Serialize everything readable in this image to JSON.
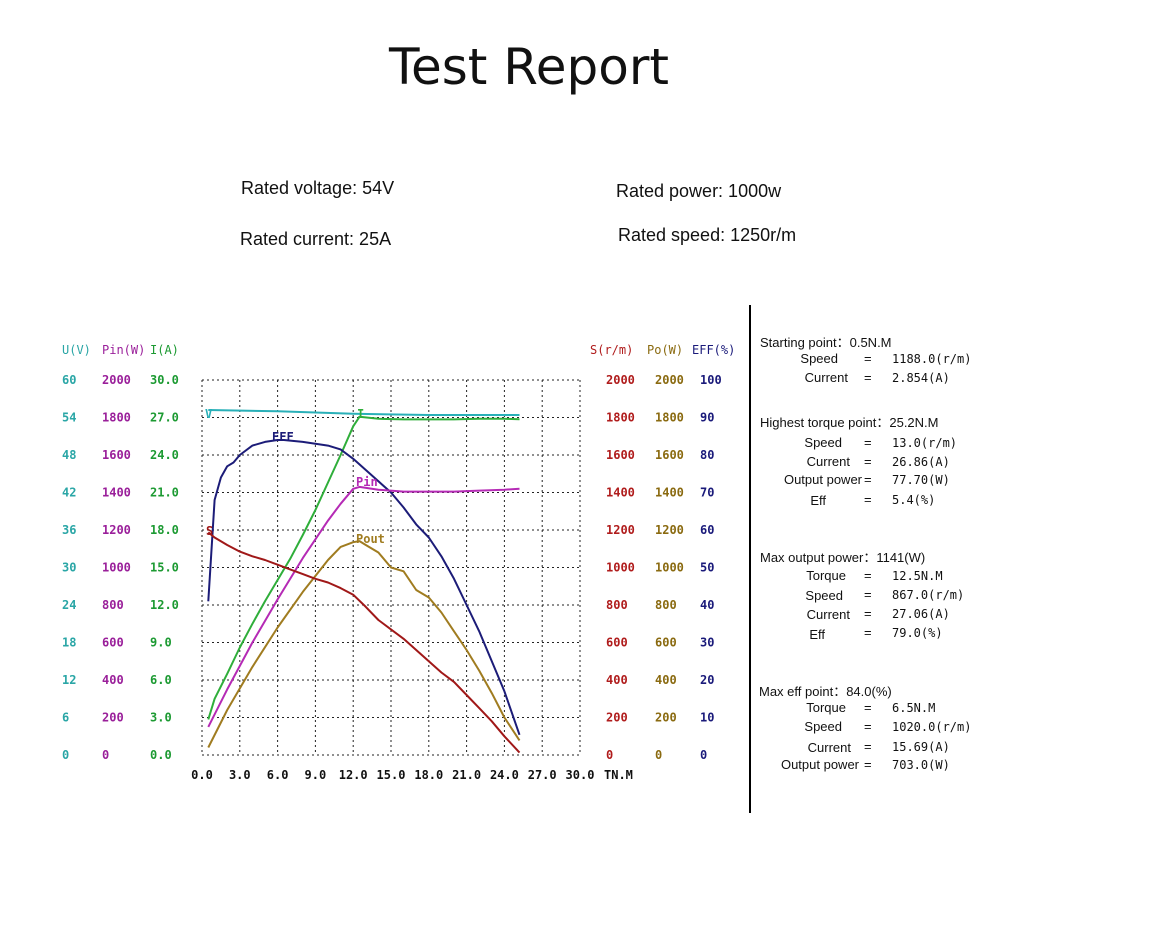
{
  "report": {
    "title": "Test Report",
    "specs": {
      "rated_voltage": "Rated voltage: 54V",
      "rated_current": "Rated current: 25A",
      "rated_power": "Rated power: 1000w",
      "rated_speed": "Rated speed: 1250r/m"
    }
  },
  "chart_data": {
    "type": "line",
    "x_label": "TN.M",
    "x_ticks": [
      "0.0",
      "3.0",
      "6.0",
      "9.0",
      "12.0",
      "15.0",
      "18.0",
      "21.0",
      "24.0",
      "27.0",
      "30.0"
    ],
    "x_range": [
      0,
      30
    ],
    "left_axes": [
      {
        "header": "U(V)",
        "color": "#2aa6a6",
        "ticks": [
          "60",
          "54",
          "48",
          "42",
          "36",
          "30",
          "24",
          "18",
          "12",
          "6",
          "0"
        ]
      },
      {
        "header": "Pin(W)",
        "color": "#9a1f9a",
        "ticks": [
          "2000",
          "1800",
          "1600",
          "1400",
          "1200",
          "1000",
          "800",
          "600",
          "400",
          "200",
          "0"
        ]
      },
      {
        "header": "I(A)",
        "color": "#1c9a32",
        "ticks": [
          "30.0",
          "27.0",
          "24.0",
          "21.0",
          "18.0",
          "15.0",
          "12.0",
          "9.0",
          "6.0",
          "3.0",
          "0.0"
        ]
      }
    ],
    "right_axes": [
      {
        "header": "S(r/m)",
        "color": "#b01c1c",
        "ticks": [
          "2000",
          "1800",
          "1600",
          "1400",
          "1200",
          "1000",
          "800",
          "600",
          "400",
          "200",
          "0"
        ]
      },
      {
        "header": "Po(W)",
        "color": "#8a6a10",
        "ticks": [
          "2000",
          "1800",
          "1600",
          "1400",
          "1200",
          "1000",
          "800",
          "600",
          "400",
          "200",
          "0"
        ]
      },
      {
        "header": "EFF(%)",
        "color": "#1a1a7a",
        "ticks": [
          "100",
          "90",
          "80",
          "70",
          "60",
          "50",
          "40",
          "30",
          "20",
          "10",
          "0"
        ]
      }
    ],
    "grid": true,
    "series": [
      {
        "name": "V",
        "color": "#29b0b8",
        "max": 60,
        "x": [
          0.5,
          6,
          12,
          18,
          24,
          25.2
        ],
        "y": [
          55.2,
          55.0,
          54.6,
          54.4,
          54.4,
          54.4
        ]
      },
      {
        "name": "I",
        "color": "#2fae3a",
        "max": 30,
        "x": [
          0.5,
          1,
          2,
          3,
          4,
          5,
          6,
          7,
          8,
          9,
          10,
          11,
          12,
          12.5,
          14,
          16,
          18,
          20,
          22,
          24,
          25.2
        ],
        "y": [
          2.85,
          4.5,
          6.5,
          8.6,
          10.5,
          12.3,
          14.0,
          15.7,
          17.6,
          19.6,
          21.8,
          24.0,
          26.3,
          27.06,
          26.9,
          26.85,
          26.85,
          26.85,
          26.9,
          26.9,
          26.86
        ]
      },
      {
        "name": "EFF",
        "color": "#1c1c78",
        "max": 100,
        "x": [
          0.5,
          1,
          1.5,
          2,
          2.5,
          3,
          4,
          5,
          6,
          6.5,
          8,
          10,
          11,
          12,
          13,
          14,
          15,
          16,
          17,
          18,
          19,
          20,
          21,
          22,
          23,
          24,
          25.2
        ],
        "y": [
          41,
          68,
          74,
          77,
          78,
          80,
          82.5,
          83.5,
          84.0,
          84.0,
          83.5,
          82.5,
          81.5,
          79.0,
          76.0,
          73.0,
          70.0,
          66.0,
          61.5,
          58.0,
          53.0,
          47.0,
          40.0,
          33.0,
          25.0,
          17.0,
          5.4
        ]
      },
      {
        "name": "Pin",
        "color": "#b52ab5",
        "max": 2000,
        "x": [
          0.5,
          2,
          4,
          6,
          8,
          10,
          11,
          12,
          12.5,
          14,
          16,
          18,
          20,
          22,
          24,
          25.2
        ],
        "y": [
          150,
          350,
          600,
          830,
          1050,
          1250,
          1340,
          1420,
          1430,
          1415,
          1405,
          1405,
          1405,
          1410,
          1415,
          1420
        ]
      },
      {
        "name": "Pout",
        "color": "#a07c20",
        "max": 2000,
        "x": [
          0.5,
          2,
          4,
          6,
          8,
          10,
          11,
          12,
          12.5,
          13,
          14,
          15,
          16,
          17,
          18,
          19,
          20,
          21,
          22,
          23,
          24,
          25.2
        ],
        "y": [
          40,
          240,
          470,
          680,
          870,
          1040,
          1110,
          1135,
          1141,
          1120,
          1080,
          1000,
          980,
          880,
          840,
          760,
          660,
          560,
          450,
          330,
          200,
          78
        ]
      },
      {
        "name": "S",
        "color": "#a01818",
        "max": 2000,
        "x": [
          0.5,
          1,
          2,
          3,
          4,
          5,
          6,
          7,
          8,
          9,
          10,
          11,
          12,
          13,
          14,
          15,
          16,
          17,
          18,
          19,
          20,
          21,
          22,
          23,
          24,
          25.2
        ],
        "y": [
          1188,
          1160,
          1120,
          1085,
          1060,
          1040,
          1015,
          990,
          965,
          940,
          920,
          890,
          855,
          790,
          720,
          670,
          620,
          560,
          500,
          440,
          390,
          320,
          250,
          180,
          100,
          13
        ]
      }
    ]
  },
  "panel": {
    "starting": {
      "header": "Starting point：0.5N.M",
      "rows": [
        {
          "label": "Speed",
          "eq": "=",
          "value": "1188.0(r/m)"
        },
        {
          "label": "Current",
          "eq": "=",
          "value": "2.854(A)"
        }
      ]
    },
    "torque": {
      "header": "Highest torque point：25.2N.M",
      "rows": [
        {
          "label": "Speed",
          "eq": "=",
          "value": "13.0(r/m)"
        },
        {
          "label": "Current",
          "eq": "=",
          "value": "26.86(A)"
        },
        {
          "label": "Output power",
          "eq": "=",
          "value": "77.70(W)"
        },
        {
          "label": "Eff",
          "eq": "=",
          "value": "5.4(%)"
        }
      ]
    },
    "maxpower": {
      "header": "Max output power：1141(W)",
      "rows": [
        {
          "label": "Torque",
          "eq": "=",
          "value": "12.5N.M"
        },
        {
          "label": "Speed",
          "eq": "=",
          "value": "867.0(r/m)"
        },
        {
          "label": "Current",
          "eq": "=",
          "value": "27.06(A)"
        },
        {
          "label": "Eff",
          "eq": "=",
          "value": "79.0(%)"
        }
      ]
    },
    "maxeff": {
      "header": "Max eff point：84.0(%)",
      "rows": [
        {
          "label": "Torque",
          "eq": "=",
          "value": "6.5N.M"
        },
        {
          "label": "Speed",
          "eq": "=",
          "value": "1020.0(r/m)"
        },
        {
          "label": "Current",
          "eq": "=",
          "value": "15.69(A)"
        },
        {
          "label": "Output power",
          "eq": "=",
          "value": "703.0(W)"
        }
      ]
    }
  }
}
